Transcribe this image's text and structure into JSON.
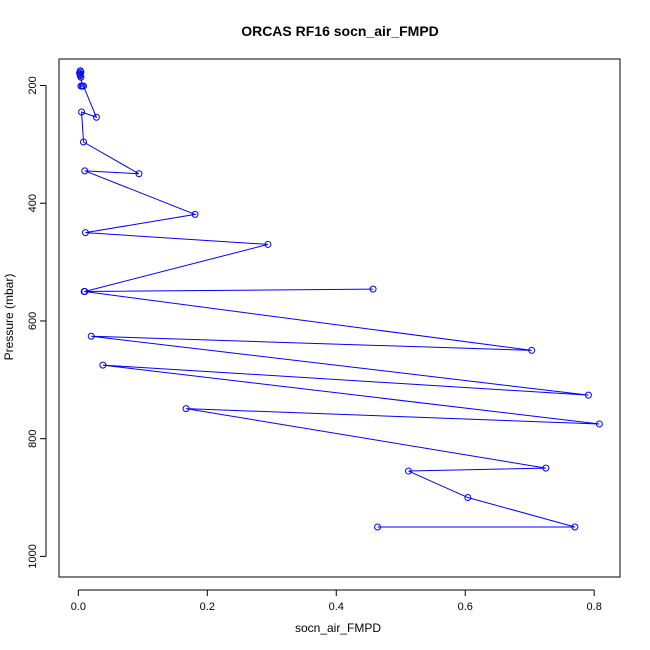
{
  "chart_data": {
    "type": "line",
    "title": "ORCAS RF16 socn_air_FMPD",
    "xlabel": "socn_air_FMPD",
    "ylabel": "Pressure (mbar)",
    "xlim": [
      -0.03,
      0.84
    ],
    "ylim": [
      1035,
      155
    ],
    "y_reversed": true,
    "xticks": [
      0.0,
      0.2,
      0.4,
      0.6,
      0.8
    ],
    "xtick_labels": [
      "0.0",
      "0.2",
      "0.4",
      "0.6",
      "0.8"
    ],
    "yticks": [
      200,
      400,
      600,
      800,
      1000
    ],
    "ytick_labels": [
      "200",
      "400",
      "600",
      "800",
      "1000"
    ],
    "grid": false,
    "legend": "none",
    "series_color": "#0000ff",
    "series": [
      {
        "x": [
          0.003,
          0.004,
          0.002,
          0.003,
          0.003,
          0.004,
          0.006,
          0.004,
          0.008,
          0.028,
          0.005,
          0.008,
          0.094,
          0.01,
          0.181,
          0.011,
          0.294,
          0.01,
          0.457,
          0.009,
          0.703,
          0.02,
          0.791,
          0.038,
          0.808,
          0.167,
          0.725,
          0.512,
          0.604,
          0.77,
          0.464
        ],
        "y": [
          175,
          177,
          179,
          181,
          183,
          186,
          201,
          201,
          201,
          254,
          245,
          296,
          350,
          345,
          419,
          450,
          470,
          550,
          546,
          550,
          650,
          626,
          726,
          675,
          775,
          749,
          850,
          855,
          900,
          950,
          950
        ]
      }
    ]
  }
}
